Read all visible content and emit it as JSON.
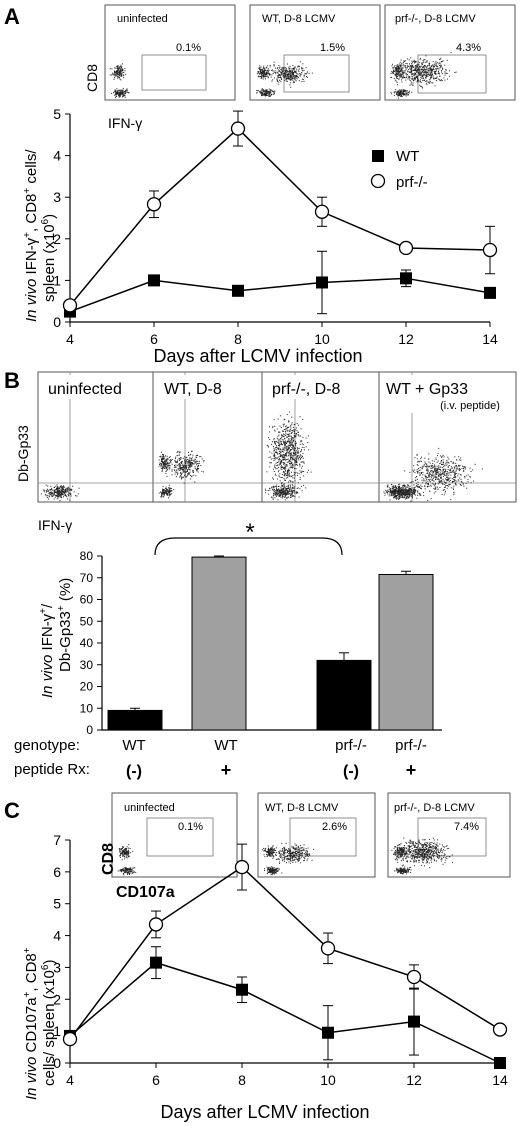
{
  "figure": {
    "panels": {
      "A": {
        "letter": "A",
        "flow": [
          {
            "title": "uninfected",
            "pct": "0.1%",
            "density": "low"
          },
          {
            "title": "WT, D-8 LCMV",
            "pct": "1.5%",
            "density": "mid"
          },
          {
            "title": "prf-/-, D-8 LCMV",
            "pct": "4.3%",
            "density": "high"
          }
        ],
        "flow_y_label": "CD8",
        "flow_x_label": "IFN-γ",
        "ylabel_italic": "In vivo",
        "ylabel_line1_rest": " IFN-γ",
        "ylabel_line1_sup": "+",
        "ylabel_line1_rest2": ", CD8",
        "ylabel_line1_sup2": "+",
        "ylabel_line1_rest3": " cells/",
        "ylabel_line2": "spleen (x10",
        "ylabel_line2_sup": "6",
        "ylabel_line2_end": ")",
        "xlabel": "Days after LCMV infection",
        "legend": [
          {
            "name": "WT",
            "marker": "square"
          },
          {
            "name": "prf-/-",
            "marker": "circle"
          }
        ]
      },
      "B": {
        "letter": "B",
        "flow": [
          {
            "title": "uninfected",
            "sub": "",
            "density": "low"
          },
          {
            "title": "WT, D-8",
            "sub": "",
            "density": "mid"
          },
          {
            "title": "prf-/-, D-8",
            "sub": "",
            "density": "high"
          },
          {
            "title": "WT + Gp33",
            "sub": "(i.v. peptide)",
            "density": "peptide"
          }
        ],
        "flow_y_label": "Db-Gp33",
        "flow_x_label": "IFN-γ",
        "star": "*",
        "ylabel_italic": "In vivo",
        "ylabel_line1_rest": " IFN-γ",
        "ylabel_line1_sup": "+",
        "ylabel_line1_end": "/",
        "ylabel_line2": "Db-Gp33",
        "ylabel_line2_sup": "+",
        "ylabel_line2_end": " (%)",
        "row_labels": {
          "genotype": "genotype:",
          "peptide": "peptide Rx:"
        },
        "genotype": [
          "WT",
          "WT",
          "prf-/-",
          "prf-/-"
        ],
        "peptide": [
          "(-)",
          "+",
          "(-)",
          "+"
        ]
      },
      "C": {
        "letter": "C",
        "flow": [
          {
            "title": "uninfected",
            "pct": "0.1%",
            "density": "low"
          },
          {
            "title": "WT, D-8 LCMV",
            "pct": "2.6%",
            "density": "mid"
          },
          {
            "title": "prf-/-, D-8 LCMV",
            "pct": "7.4%",
            "density": "high"
          }
        ],
        "flow_y_label": "CD8",
        "flow_x_label": "CD107a",
        "ylabel_italic": "In vivo",
        "ylabel_line1_rest": " CD107a",
        "ylabel_line1_sup": "+",
        "ylabel_line1_rest2": ", CD8",
        "ylabel_line1_sup2": "+",
        "ylabel_line2": "cells/ spleen (x10",
        "ylabel_line2_sup": "6",
        "ylabel_line2_end": ")",
        "xlabel": "Days after LCMV infection"
      }
    }
  },
  "chart_data": [
    {
      "type": "line",
      "panel": "A",
      "x": [
        4,
        6,
        8,
        10,
        12,
        14
      ],
      "series": [
        {
          "name": "WT",
          "marker": "square",
          "values": [
            0.25,
            1.0,
            0.75,
            0.95,
            1.05,
            0.7
          ],
          "errors": [
            0.05,
            0.12,
            0.08,
            0.75,
            0.2,
            0.08
          ]
        },
        {
          "name": "prf-/-",
          "marker": "circle",
          "values": [
            0.4,
            2.83,
            4.65,
            2.65,
            1.78,
            1.73
          ],
          "errors": [
            0.05,
            0.32,
            0.42,
            0.35,
            0.08,
            0.57
          ]
        }
      ],
      "xticks": [
        4,
        6,
        8,
        10,
        12,
        14
      ],
      "yticks": [
        0,
        1,
        2,
        3,
        4,
        5
      ],
      "xlim": [
        4,
        14
      ],
      "ylim": [
        0,
        5
      ]
    },
    {
      "type": "bar",
      "panel": "B",
      "values": [
        9,
        79.5,
        32,
        71.5
      ],
      "errors": [
        1,
        0.5,
        3.5,
        1.5
      ],
      "colors": [
        "#000000",
        "#a0a0a0",
        "#000000",
        "#a0a0a0"
      ],
      "yticks": [
        0,
        10,
        20,
        30,
        40,
        50,
        60,
        70,
        80
      ],
      "ylim": [
        0,
        80
      ]
    },
    {
      "type": "line",
      "panel": "C",
      "x": [
        4,
        6,
        8,
        10,
        12,
        14
      ],
      "series": [
        {
          "name": "WT",
          "marker": "square",
          "values": [
            0.85,
            3.15,
            2.3,
            0.95,
            1.3,
            0.0
          ],
          "errors": [
            0.1,
            0.5,
            0.4,
            0.85,
            1.05,
            0.05
          ]
        },
        {
          "name": "prf-/-",
          "marker": "circle",
          "values": [
            0.75,
            4.35,
            6.15,
            3.6,
            2.7,
            1.05
          ],
          "errors": [
            0.1,
            0.42,
            0.72,
            0.48,
            0.38,
            0.08
          ]
        }
      ],
      "xticks": [
        4,
        6,
        8,
        10,
        12,
        14
      ],
      "yticks": [
        0,
        1,
        2,
        3,
        4,
        5,
        6,
        7
      ],
      "xlim": [
        4,
        14
      ],
      "ylim": [
        0,
        7
      ]
    }
  ]
}
